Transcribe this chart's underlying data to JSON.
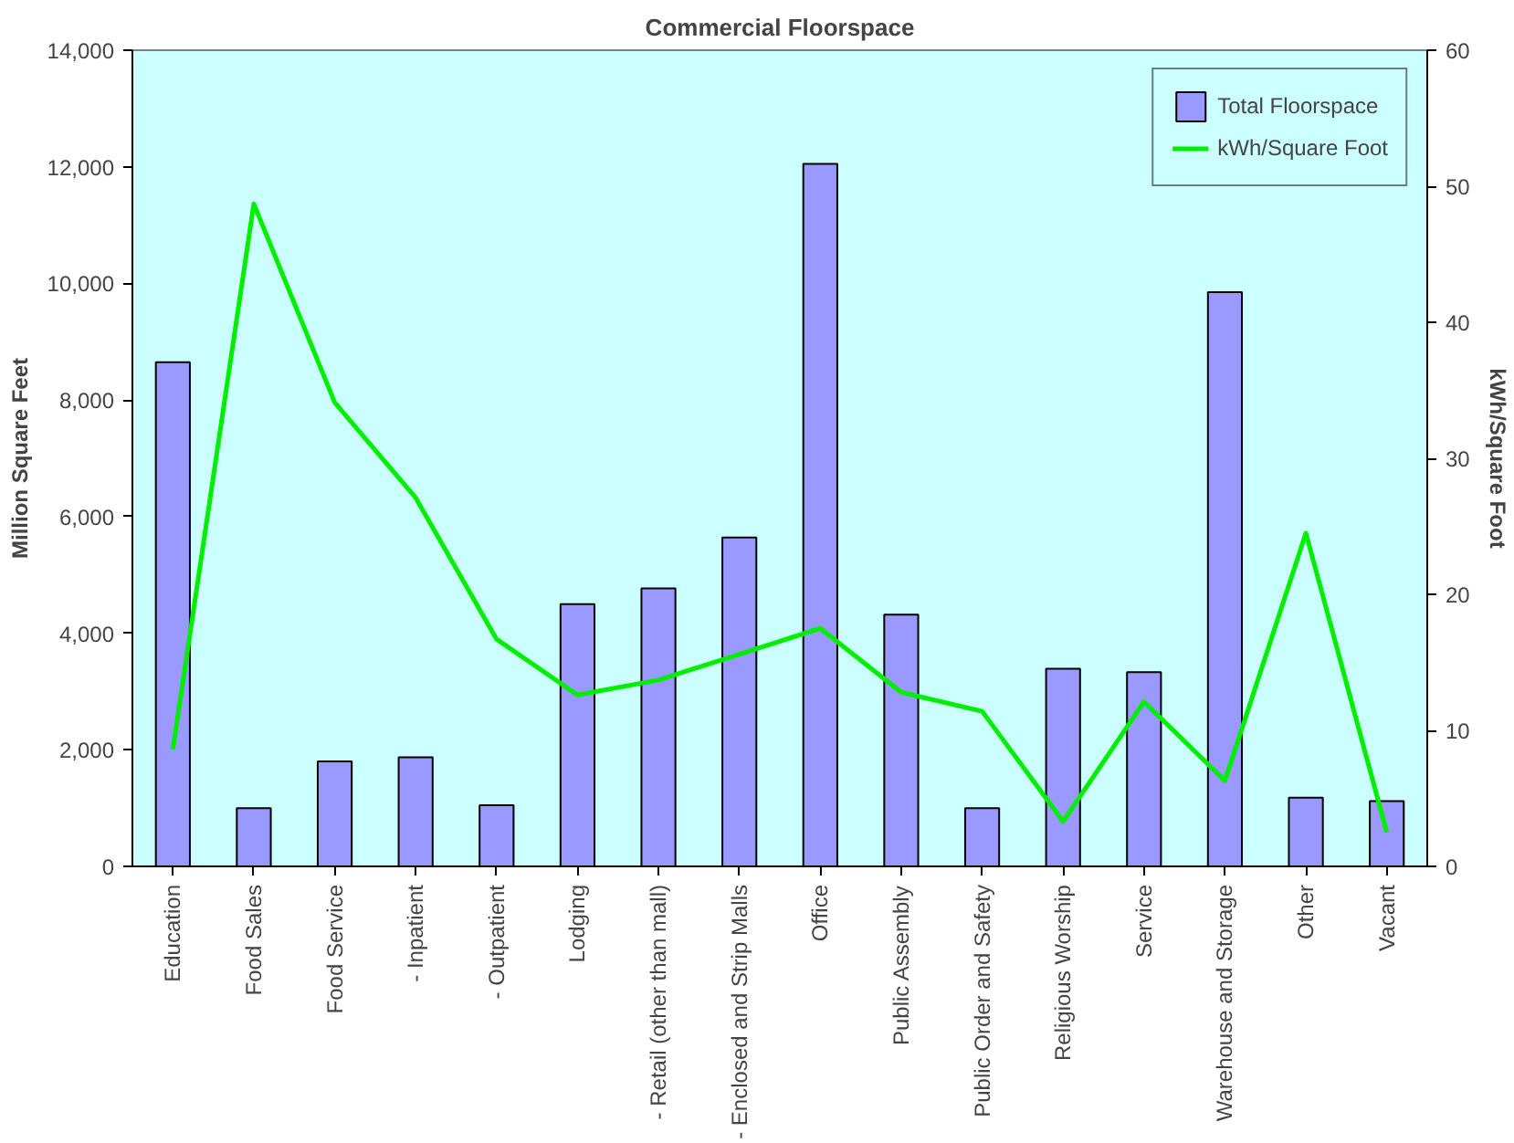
{
  "chart_data": {
    "type": "bar",
    "title": "Commercial Floorspace",
    "ylabel": "Million Square Feet",
    "y2label": "kWh/Square Foot",
    "categories": [
      "Education",
      "Food Sales",
      "Food Service",
      "- Inpatient",
      "- Outpatient",
      "Lodging",
      "- Retail (other than mall)",
      "- Enclosed and Strip Malls",
      "Office",
      "Public Assembly",
      "Public Order and Safety",
      "Religious Worship",
      "Service",
      "Warehouse and Storage",
      "Other",
      "Vacant"
    ],
    "series": [
      {
        "name": "Total Floorspace",
        "color": "#9999ff",
        "values": [
          8650,
          1000,
          1800,
          1870,
          1050,
          4500,
          4770,
          5640,
          12050,
          4320,
          1000,
          3390,
          3330,
          9850,
          1180,
          1120
        ]
      },
      {
        "name": "kWh/Square Foot",
        "type": "line",
        "axis": "y2",
        "color": "#00ee00",
        "values": [
          8.6,
          48.7,
          34.1,
          27.1,
          16.7,
          12.6,
          13.7,
          15.6,
          17.5,
          12.8,
          11.4,
          3.3,
          12.1,
          6.3,
          24.5,
          2.5
        ]
      }
    ],
    "ylim": [
      0,
      14000
    ],
    "yticks": [
      {
        "value": 0,
        "label": "0"
      },
      {
        "value": 2000,
        "label": "2,000"
      },
      {
        "value": 4000,
        "label": "4,000"
      },
      {
        "value": 6000,
        "label": "6,000"
      },
      {
        "value": 8000,
        "label": "8,000"
      },
      {
        "value": 10000,
        "label": "10,000"
      },
      {
        "value": 12000,
        "label": "12,000"
      },
      {
        "value": 14000,
        "label": "14,000"
      }
    ],
    "y2lim": [
      0,
      60
    ],
    "y2ticks": [
      0,
      10,
      20,
      30,
      40,
      50,
      60
    ],
    "grid": false,
    "legend": "top right"
  }
}
